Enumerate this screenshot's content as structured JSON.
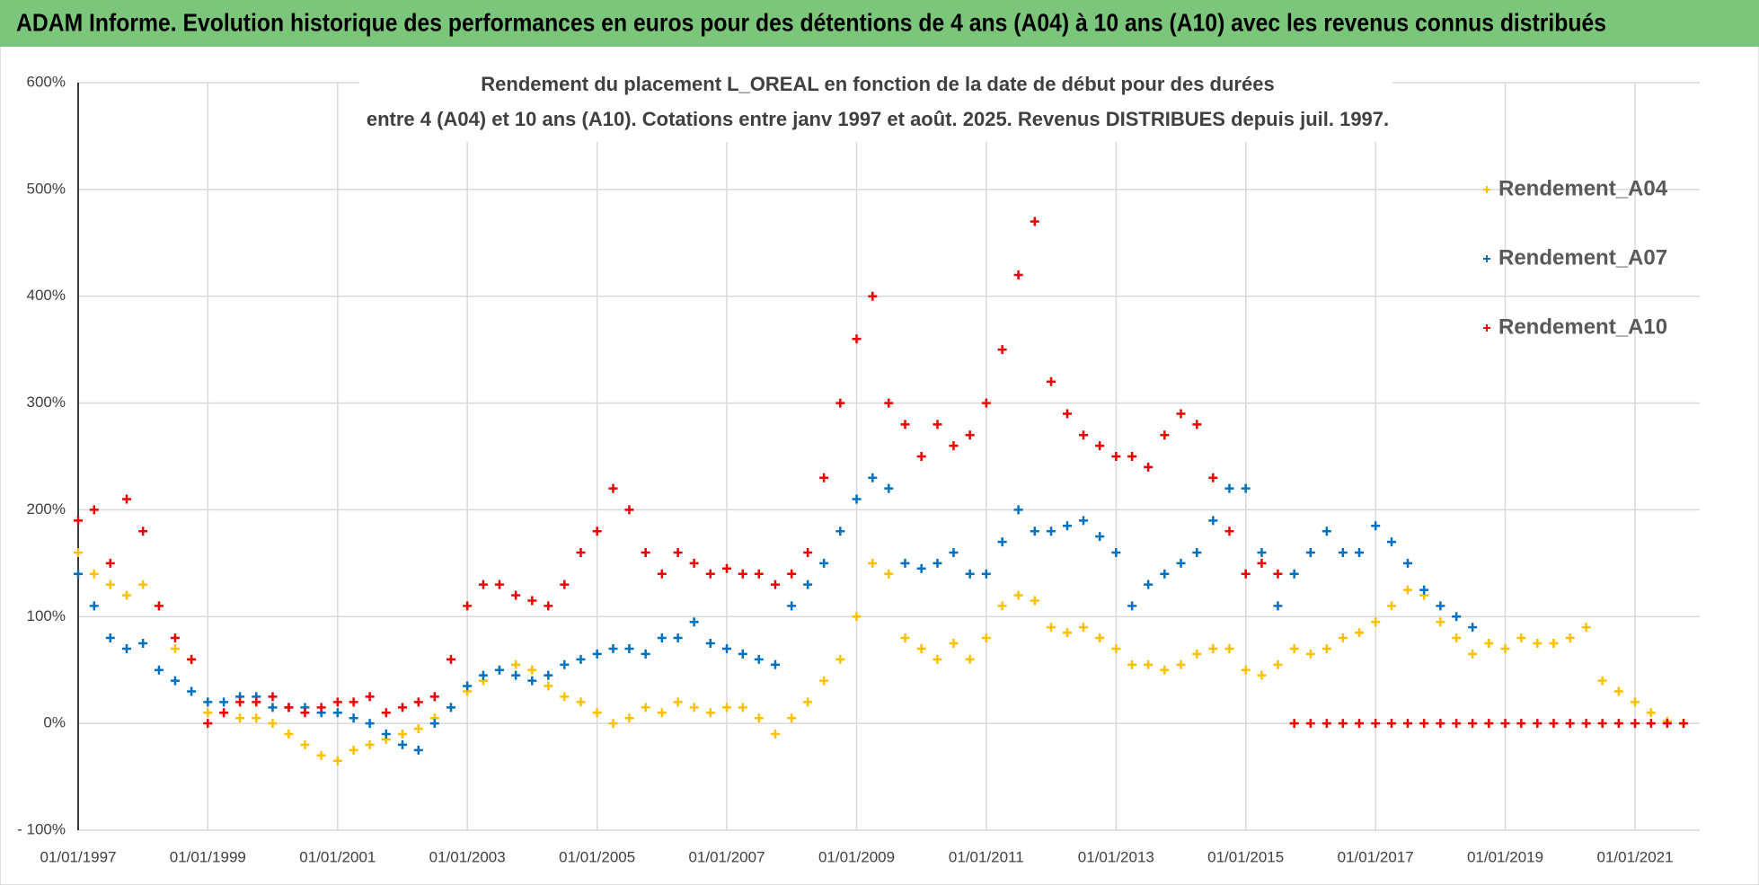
{
  "chart_data": {
    "type": "scatter",
    "header": "ADAM Informe. Evolution historique des performances en euros pour des détentions de 4 ans (A04) à 10 ans (A10) avec les revenus connus distribués",
    "title": "Rendement du placement L_OREAL en fonction de la date de début pour des durées",
    "subtitle": "entre 4 (A04) et 10 ans (A10). Cotations entre janv 1997 et août. 2025. Revenus DISTRIBUES depuis juil. 1997.",
    "x": [
      "01/01/1997",
      "01/04/1997",
      "01/07/1997",
      "01/10/1997",
      "01/01/1998",
      "01/04/1998",
      "01/07/1998",
      "01/10/1998",
      "01/01/1999",
      "01/04/1999",
      "01/07/1999",
      "01/10/1999",
      "01/01/2000",
      "01/04/2000",
      "01/07/2000",
      "01/10/2000",
      "01/01/2001",
      "01/04/2001",
      "01/07/2001",
      "01/10/2001",
      "01/01/2002",
      "01/04/2002",
      "01/07/2002",
      "01/10/2002",
      "01/01/2003",
      "01/04/2003",
      "01/07/2003",
      "01/10/2003",
      "01/01/2004",
      "01/04/2004",
      "01/07/2004",
      "01/10/2004",
      "01/01/2005",
      "01/04/2005",
      "01/07/2005",
      "01/10/2005",
      "01/01/2006",
      "01/04/2006",
      "01/07/2006",
      "01/10/2006",
      "01/01/2007",
      "01/04/2007",
      "01/07/2007",
      "01/10/2007",
      "01/01/2008",
      "01/04/2008",
      "01/07/2008",
      "01/10/2008",
      "01/01/2009",
      "01/04/2009",
      "01/07/2009",
      "01/10/2009",
      "01/01/2010",
      "01/04/2010",
      "01/07/2010",
      "01/10/2010",
      "01/01/2011",
      "01/04/2011",
      "01/07/2011",
      "01/10/2011",
      "01/01/2012",
      "01/04/2012",
      "01/07/2012",
      "01/10/2012",
      "01/01/2013",
      "01/04/2013",
      "01/07/2013",
      "01/10/2013",
      "01/01/2014",
      "01/04/2014",
      "01/07/2014",
      "01/10/2014",
      "01/01/2015",
      "01/04/2015",
      "01/07/2015",
      "01/10/2015",
      "01/01/2016",
      "01/04/2016",
      "01/07/2016",
      "01/10/2016",
      "01/01/2017",
      "01/04/2017",
      "01/07/2017",
      "01/10/2017",
      "01/01/2018",
      "01/04/2018",
      "01/07/2018",
      "01/10/2018",
      "01/01/2019",
      "01/04/2019",
      "01/07/2019",
      "01/10/2019",
      "01/01/2020",
      "01/04/2020",
      "01/07/2020",
      "01/10/2020",
      "01/01/2021",
      "01/04/2021",
      "01/07/2021",
      "01/10/2021"
    ],
    "series": [
      {
        "name": "Rendement_A04",
        "color": "#ffc000",
        "values": [
          160,
          140,
          130,
          120,
          130,
          110,
          70,
          60,
          10,
          10,
          5,
          5,
          0,
          -10,
          -20,
          -30,
          -35,
          -25,
          -20,
          -15,
          -10,
          -5,
          5,
          15,
          30,
          40,
          50,
          55,
          50,
          35,
          25,
          20,
          10,
          0,
          5,
          15,
          10,
          20,
          15,
          10,
          15,
          15,
          5,
          -10,
          5,
          20,
          40,
          60,
          100,
          150,
          140,
          80,
          70,
          60,
          75,
          60,
          80,
          110,
          120,
          115,
          90,
          85,
          90,
          80,
          70,
          55,
          55,
          50,
          55,
          65,
          70,
          70,
          50,
          45,
          55,
          70,
          65,
          70,
          80,
          85,
          95,
          110,
          125,
          120,
          95,
          80,
          65,
          75,
          70,
          80,
          75,
          75,
          80,
          90,
          40,
          30,
          20,
          10,
          2,
          0
        ]
      },
      {
        "name": "Rendement_A07",
        "color": "#0070c0",
        "values": [
          140,
          110,
          80,
          70,
          75,
          50,
          40,
          30,
          20,
          20,
          25,
          25,
          15,
          15,
          15,
          10,
          10,
          5,
          0,
          -10,
          -20,
          -25,
          0,
          15,
          35,
          45,
          50,
          45,
          40,
          45,
          55,
          60,
          65,
          70,
          70,
          65,
          80,
          80,
          95,
          75,
          70,
          65,
          60,
          55,
          110,
          130,
          150,
          180,
          210,
          230,
          220,
          150,
          145,
          150,
          160,
          140,
          140,
          170,
          200,
          180,
          180,
          185,
          190,
          175,
          160,
          110,
          130,
          140,
          150,
          160,
          190,
          220,
          220,
          160,
          110,
          140,
          160,
          180,
          160,
          160,
          185,
          170,
          150,
          125,
          110,
          100,
          90,
          null,
          null,
          null,
          null,
          null,
          null,
          null,
          null,
          null,
          null,
          null,
          null,
          null
        ]
      },
      {
        "name": "Rendement_A10",
        "color": "#ee0000",
        "values": [
          190,
          200,
          150,
          210,
          180,
          110,
          80,
          60,
          0,
          10,
          20,
          20,
          25,
          15,
          10,
          15,
          20,
          20,
          25,
          10,
          15,
          20,
          25,
          60,
          110,
          130,
          130,
          120,
          115,
          110,
          130,
          160,
          180,
          220,
          200,
          160,
          140,
          160,
          150,
          140,
          145,
          140,
          140,
          130,
          140,
          160,
          230,
          300,
          360,
          400,
          300,
          280,
          250,
          280,
          260,
          270,
          300,
          350,
          420,
          470,
          320,
          290,
          270,
          260,
          250,
          250,
          240,
          270,
          290,
          280,
          230,
          180,
          140,
          150,
          140,
          0,
          0,
          0,
          0,
          0,
          0,
          0,
          0,
          0,
          0,
          0,
          0,
          0,
          0,
          0,
          0,
          0,
          0,
          0,
          0,
          0,
          0,
          0,
          0,
          0
        ]
      }
    ],
    "xlim": [
      "01/01/1997",
      "31/12/2021"
    ],
    "xticks": [
      "01/01/1997",
      "01/01/1999",
      "01/01/2001",
      "01/01/2003",
      "01/01/2005",
      "01/01/2007",
      "01/01/2009",
      "01/01/2011",
      "01/01/2013",
      "01/01/2015",
      "01/01/2017",
      "01/01/2019",
      "01/01/2021"
    ],
    "ylim": [
      -100,
      600
    ],
    "yticks": [
      {
        "value": -100,
        "label": "- 100%"
      },
      {
        "value": 0,
        "label": "0%"
      },
      {
        "value": 100,
        "label": "100%"
      },
      {
        "value": 200,
        "label": "200%"
      },
      {
        "value": 300,
        "label": "300%"
      },
      {
        "value": 400,
        "label": "400%"
      },
      {
        "value": 500,
        "label": "500%"
      },
      {
        "value": 600,
        "label": "600%"
      }
    ],
    "grid": true,
    "legend": "right"
  }
}
